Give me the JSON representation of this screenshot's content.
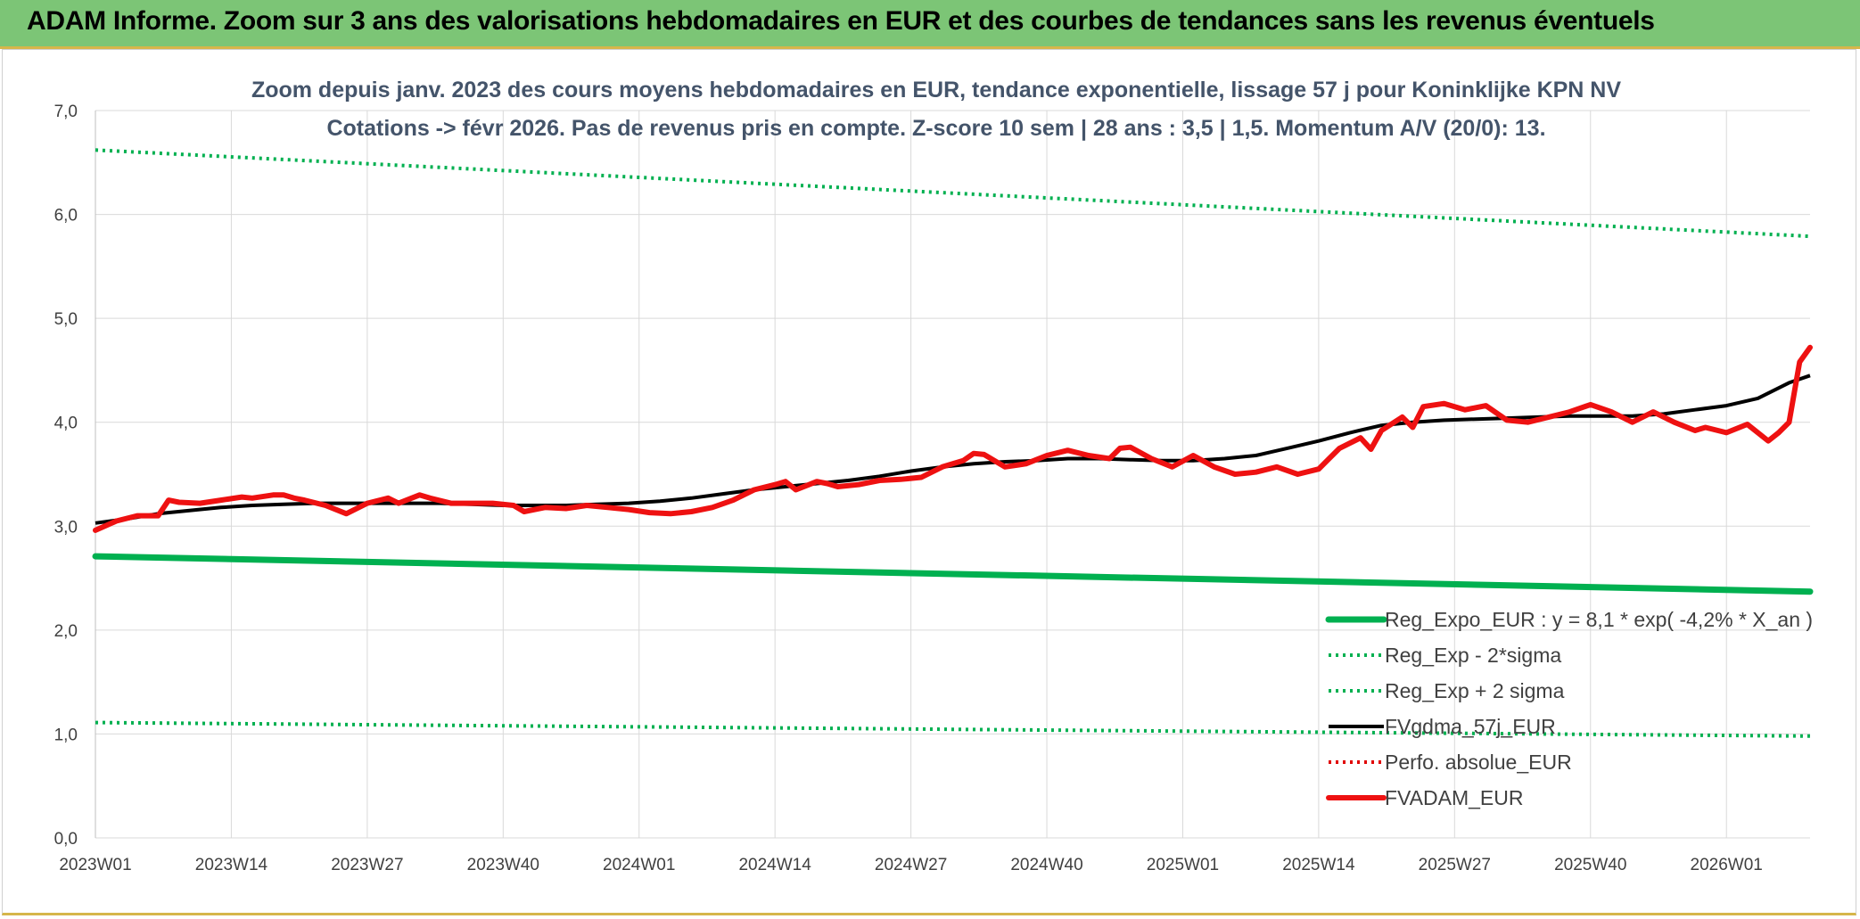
{
  "banner": {
    "title": "ADAM Informe. Zoom sur 3 ans des valorisations hebdomadaires en EUR et des courbes de tendances sans les revenus éventuels"
  },
  "colors": {
    "banner_bg": "#7cc576",
    "reg_expo": "#00b050",
    "reg_sigma": "#00b050",
    "fvgdma": "#000000",
    "perfo": "#e00000",
    "fvadam": "#ee1111",
    "grid": "#d9d9d9"
  },
  "chart_data": {
    "type": "line",
    "title_lines": [
      "Zoom depuis janv. 2023 des cours moyens hebdomadaires en EUR, tendance exponentielle, lissage 57 j pour Koninklijke KPN NV",
      "Cotations -> févr 2026. Pas de revenus pris en compte. Z-score 10 sem | 28 ans : 3,5 | 1,5. Momentum A/V (20/0): 13."
    ],
    "x_tick_labels": [
      "2023W01",
      "2023W14",
      "2023W27",
      "2023W40",
      "2024W01",
      "2024W14",
      "2024W27",
      "2024W40",
      "2025W01",
      "2025W14",
      "2025W27",
      "2025W40",
      "2026W01"
    ],
    "x_tick_index": [
      0,
      13,
      26,
      39,
      52,
      65,
      78,
      91,
      104,
      117,
      130,
      143,
      156
    ],
    "x_range": [
      0,
      164
    ],
    "y_ticks": [
      "0,0",
      "1,0",
      "2,0",
      "3,0",
      "4,0",
      "5,0",
      "6,0",
      "7,0"
    ],
    "ylim": [
      0,
      7
    ],
    "grid": true,
    "legend_position": "bottom-right",
    "series": [
      {
        "name": "Reg_Expo_EUR : y = 8,1 * exp( -4,2% *  X_an )",
        "style": "solid-thick",
        "color": "#00b050",
        "points": [
          [
            0,
            2.71
          ],
          [
            164,
            2.37
          ]
        ]
      },
      {
        "name": "Reg_Exp - 2*sigma",
        "style": "dotted",
        "color": "#00b050",
        "points": [
          [
            0,
            1.11
          ],
          [
            164,
            0.98
          ]
        ]
      },
      {
        "name": "Reg_Exp + 2 sigma",
        "style": "dotted",
        "color": "#00b050",
        "points": [
          [
            0,
            6.62
          ],
          [
            164,
            5.79
          ]
        ]
      },
      {
        "name": "FVgdma_57j_EUR",
        "style": "solid",
        "color": "#000000",
        "points": [
          [
            0,
            3.03
          ],
          [
            3,
            3.07
          ],
          [
            6,
            3.12
          ],
          [
            9,
            3.15
          ],
          [
            12,
            3.18
          ],
          [
            15,
            3.2
          ],
          [
            18,
            3.21
          ],
          [
            21,
            3.22
          ],
          [
            24,
            3.22
          ],
          [
            27,
            3.22
          ],
          [
            30,
            3.22
          ],
          [
            33,
            3.22
          ],
          [
            36,
            3.21
          ],
          [
            39,
            3.2
          ],
          [
            42,
            3.2
          ],
          [
            45,
            3.2
          ],
          [
            48,
            3.21
          ],
          [
            51,
            3.22
          ],
          [
            54,
            3.24
          ],
          [
            57,
            3.27
          ],
          [
            60,
            3.31
          ],
          [
            63,
            3.35
          ],
          [
            66,
            3.38
          ],
          [
            69,
            3.41
          ],
          [
            72,
            3.44
          ],
          [
            75,
            3.48
          ],
          [
            78,
            3.53
          ],
          [
            81,
            3.57
          ],
          [
            84,
            3.6
          ],
          [
            87,
            3.62
          ],
          [
            90,
            3.63
          ],
          [
            93,
            3.65
          ],
          [
            96,
            3.65
          ],
          [
            99,
            3.64
          ],
          [
            102,
            3.63
          ],
          [
            105,
            3.63
          ],
          [
            108,
            3.65
          ],
          [
            111,
            3.68
          ],
          [
            114,
            3.75
          ],
          [
            117,
            3.82
          ],
          [
            120,
            3.9
          ],
          [
            123,
            3.97
          ],
          [
            126,
            4.0
          ],
          [
            129,
            4.02
          ],
          [
            132,
            4.03
          ],
          [
            135,
            4.04
          ],
          [
            138,
            4.05
          ],
          [
            141,
            4.06
          ],
          [
            144,
            4.06
          ],
          [
            147,
            4.06
          ],
          [
            150,
            4.08
          ],
          [
            153,
            4.12
          ],
          [
            156,
            4.16
          ],
          [
            159,
            4.23
          ],
          [
            162,
            4.38
          ],
          [
            164,
            4.45
          ]
        ]
      },
      {
        "name": "Perfo. absolue_EUR",
        "style": "dotted",
        "color": "#e00000",
        "points": []
      },
      {
        "name": "FVADAM_EUR",
        "style": "solid-thick",
        "color": "#ee1111",
        "points": [
          [
            0,
            2.96
          ],
          [
            2,
            3.05
          ],
          [
            4,
            3.1
          ],
          [
            6,
            3.1
          ],
          [
            7,
            3.25
          ],
          [
            8,
            3.23
          ],
          [
            10,
            3.22
          ],
          [
            12,
            3.25
          ],
          [
            14,
            3.28
          ],
          [
            15,
            3.27
          ],
          [
            17,
            3.3
          ],
          [
            18,
            3.3
          ],
          [
            19,
            3.27
          ],
          [
            20,
            3.25
          ],
          [
            22,
            3.2
          ],
          [
            24,
            3.12
          ],
          [
            26,
            3.22
          ],
          [
            28,
            3.27
          ],
          [
            29,
            3.22
          ],
          [
            31,
            3.3
          ],
          [
            32,
            3.27
          ],
          [
            34,
            3.22
          ],
          [
            36,
            3.22
          ],
          [
            38,
            3.22
          ],
          [
            40,
            3.2
          ],
          [
            41,
            3.14
          ],
          [
            43,
            3.18
          ],
          [
            45,
            3.17
          ],
          [
            47,
            3.2
          ],
          [
            49,
            3.18
          ],
          [
            51,
            3.16
          ],
          [
            53,
            3.13
          ],
          [
            55,
            3.12
          ],
          [
            57,
            3.14
          ],
          [
            59,
            3.18
          ],
          [
            61,
            3.25
          ],
          [
            63,
            3.35
          ],
          [
            65,
            3.4
          ],
          [
            66,
            3.43
          ],
          [
            67,
            3.35
          ],
          [
            69,
            3.43
          ],
          [
            70,
            3.41
          ],
          [
            71,
            3.38
          ],
          [
            73,
            3.4
          ],
          [
            75,
            3.44
          ],
          [
            77,
            3.45
          ],
          [
            79,
            3.47
          ],
          [
            81,
            3.57
          ],
          [
            83,
            3.63
          ],
          [
            84,
            3.7
          ],
          [
            85,
            3.69
          ],
          [
            87,
            3.57
          ],
          [
            89,
            3.6
          ],
          [
            91,
            3.68
          ],
          [
            93,
            3.73
          ],
          [
            95,
            3.68
          ],
          [
            97,
            3.65
          ],
          [
            98,
            3.75
          ],
          [
            99,
            3.76
          ],
          [
            101,
            3.65
          ],
          [
            103,
            3.57
          ],
          [
            105,
            3.68
          ],
          [
            107,
            3.57
          ],
          [
            109,
            3.5
          ],
          [
            111,
            3.52
          ],
          [
            113,
            3.57
          ],
          [
            115,
            3.5
          ],
          [
            117,
            3.55
          ],
          [
            118,
            3.65
          ],
          [
            119,
            3.75
          ],
          [
            121,
            3.85
          ],
          [
            122,
            3.74
          ],
          [
            123,
            3.92
          ],
          [
            125,
            4.05
          ],
          [
            126,
            3.95
          ],
          [
            127,
            4.15
          ],
          [
            129,
            4.18
          ],
          [
            131,
            4.12
          ],
          [
            133,
            4.16
          ],
          [
            135,
            4.02
          ],
          [
            137,
            4.0
          ],
          [
            139,
            4.05
          ],
          [
            141,
            4.1
          ],
          [
            143,
            4.17
          ],
          [
            145,
            4.1
          ],
          [
            147,
            4.0
          ],
          [
            149,
            4.1
          ],
          [
            151,
            4.0
          ],
          [
            153,
            3.92
          ],
          [
            154,
            3.95
          ],
          [
            156,
            3.9
          ],
          [
            158,
            3.98
          ],
          [
            160,
            3.82
          ],
          [
            161,
            3.9
          ],
          [
            162,
            4.0
          ],
          [
            163,
            4.58
          ],
          [
            164,
            4.72
          ]
        ]
      }
    ]
  }
}
